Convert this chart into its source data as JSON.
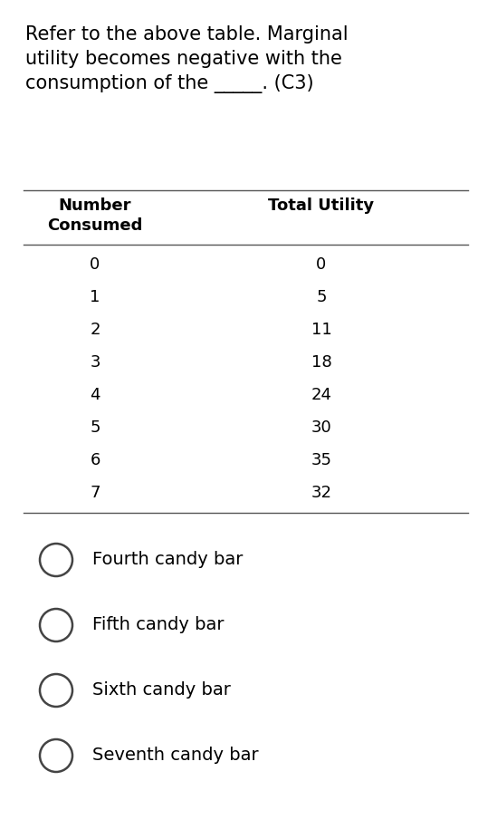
{
  "question_text": "Refer to the above table. Marginal\nutility becomes negative with the\nconsumption of the _____. (C3)",
  "col1_header": "Number\nConsumed",
  "col2_header": "Total Utility",
  "col1_values": [
    "0",
    "1",
    "2",
    "3",
    "4",
    "5",
    "6",
    "7"
  ],
  "col2_values": [
    "0",
    "5",
    "11",
    "18",
    "24",
    "30",
    "35",
    "32"
  ],
  "options": [
    "Fourth candy bar",
    "Fifth candy bar",
    "Sixth candy bar",
    "Seventh candy bar"
  ],
  "bg_color": "#ffffff",
  "text_color": "#000000",
  "font_size_question": 15,
  "font_size_table": 13,
  "font_size_options": 14
}
